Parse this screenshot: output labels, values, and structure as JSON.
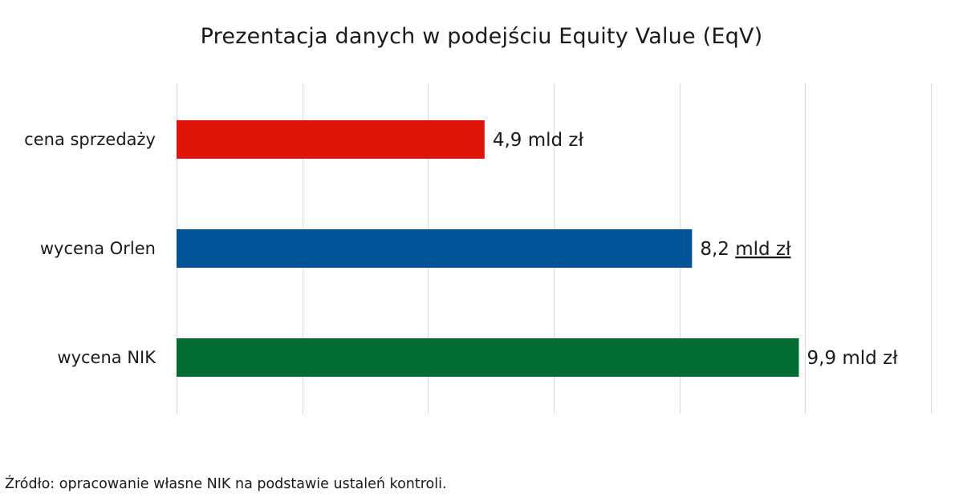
{
  "chart_data": {
    "type": "bar",
    "orientation": "horizontal",
    "title": "Prezentacja danych w podejściu Equity Value (EqV)",
    "categories": [
      "cena sprzedaży",
      "wycena Orlen",
      "wycena NIK"
    ],
    "values": [
      4.9,
      8.2,
      9.9
    ],
    "data_labels": [
      "4,9 mld zł",
      "8,2  mld zł",
      "9,9 mld zł"
    ],
    "colors": [
      "#df150b",
      "#005496",
      "#026c33"
    ],
    "xlim": [
      0,
      12
    ],
    "gridlines": true,
    "legend": "none"
  },
  "footer": {
    "source": "Źródło: opracowanie własne NIK na podstawie ustaleń kontroli."
  }
}
